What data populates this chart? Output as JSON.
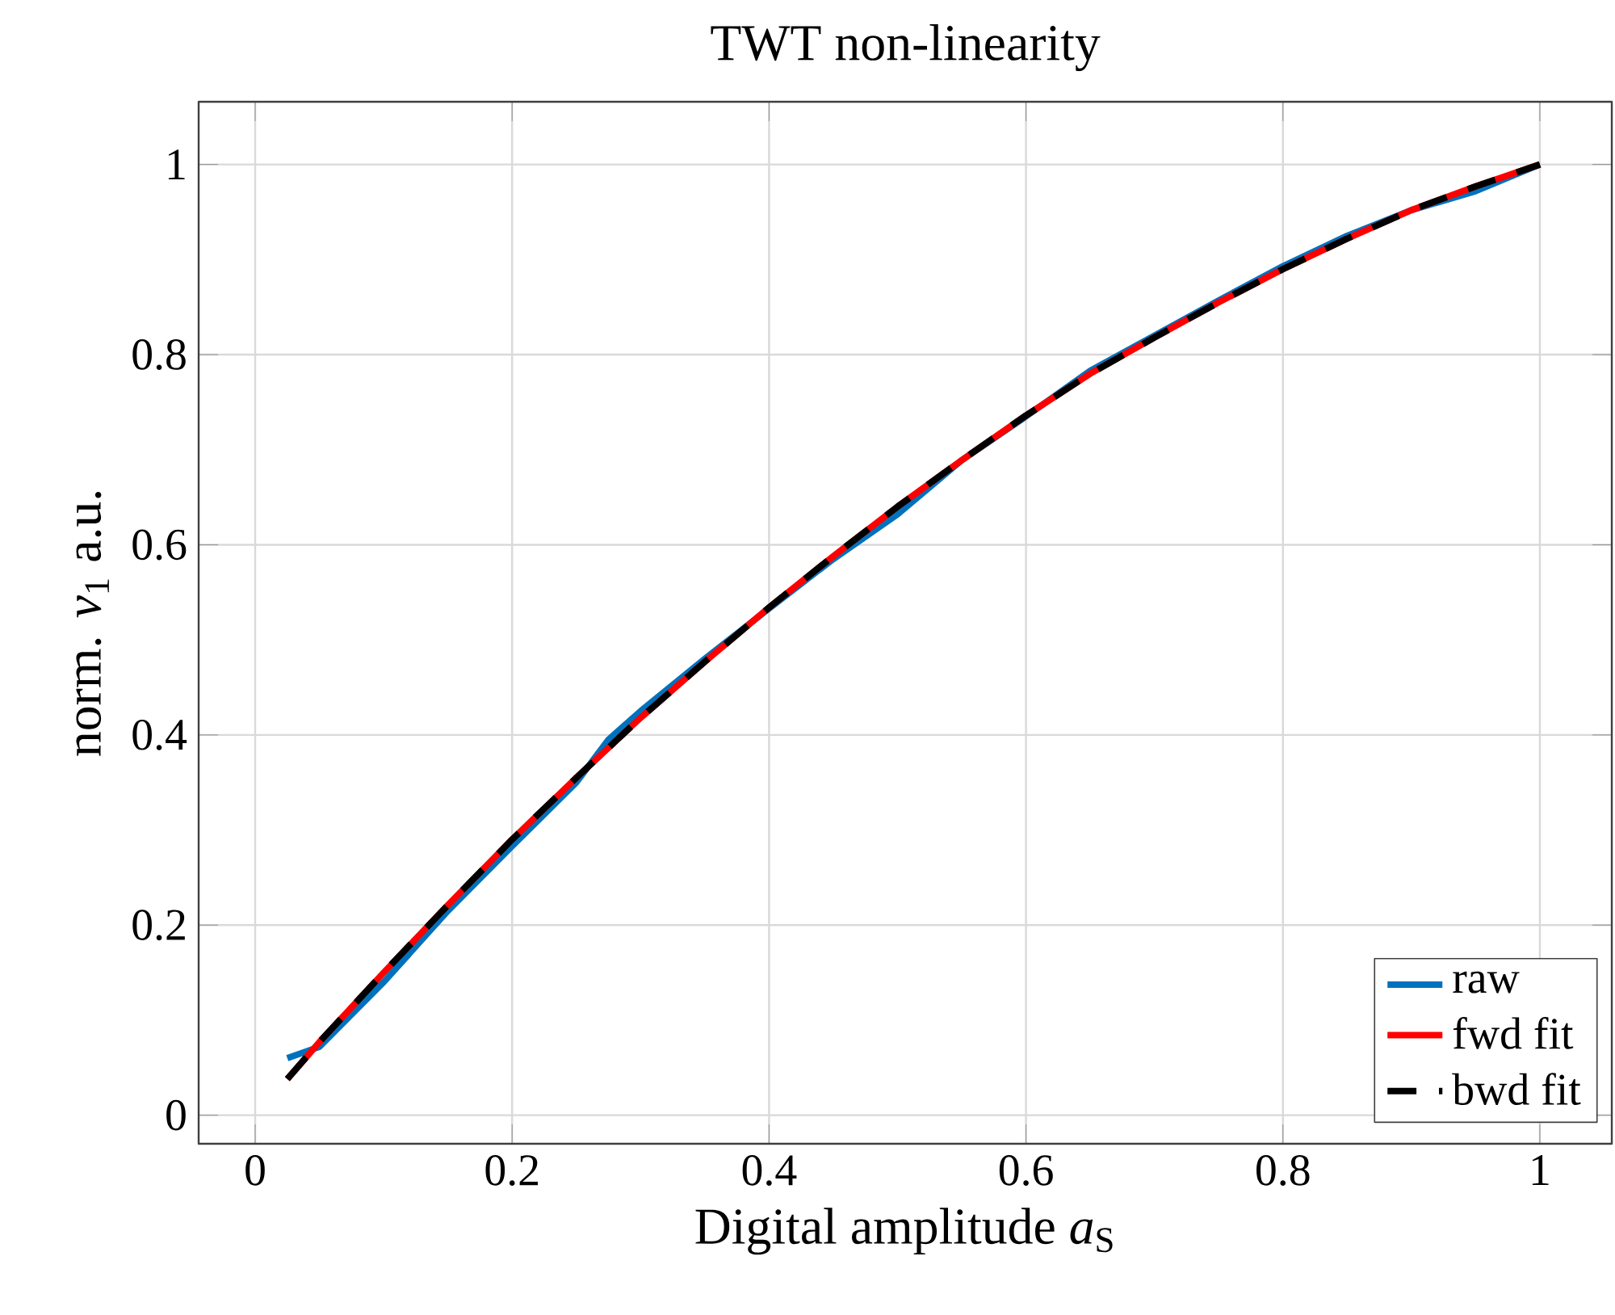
{
  "chart_data": {
    "type": "line",
    "title": "TWT non-linearity",
    "xlabel": "Digital amplitude *a*$_{S}$",
    "ylabel": "norm. *ν*$_{1}$ a.u.",
    "xlim": [
      -0.044,
      1.056
    ],
    "ylim": [
      -0.03,
      1.066
    ],
    "xticks": [
      0,
      0.2,
      0.4,
      0.6,
      0.8,
      1
    ],
    "yticks": [
      0,
      0.2,
      0.4,
      0.6,
      0.8,
      1
    ],
    "grid": true,
    "legend": "bottom right",
    "series": [
      {
        "name": "raw",
        "color": "#0072bd",
        "line_style": "solid",
        "x": [
          0.025,
          0.05,
          0.1,
          0.15,
          0.2,
          0.25,
          0.275,
          0.3,
          0.35,
          0.4,
          0.45,
          0.5,
          0.55,
          0.6,
          0.65,
          0.7,
          0.75,
          0.8,
          0.85,
          0.9,
          0.95,
          1
        ],
        "values": [
          0.06,
          0.072,
          0.14,
          0.215,
          0.283,
          0.35,
          0.395,
          0.425,
          0.48,
          0.533,
          0.585,
          0.632,
          0.689,
          0.735,
          0.783,
          0.82,
          0.857,
          0.893,
          0.925,
          0.952,
          0.972,
          1
        ]
      },
      {
        "name": "fwd fit",
        "color": "#ff0000",
        "line_style": "solid",
        "x": [
          0.025,
          0.05,
          0.1,
          0.15,
          0.2,
          0.25,
          0.3,
          0.35,
          0.4,
          0.45,
          0.5,
          0.55,
          0.6,
          0.65,
          0.7,
          0.75,
          0.8,
          0.85,
          0.9,
          0.95,
          1
        ],
        "values": [
          0.038,
          0.077,
          0.15,
          0.221,
          0.29,
          0.355,
          0.418,
          0.477,
          0.534,
          0.588,
          0.64,
          0.689,
          0.736,
          0.78,
          0.818,
          0.855,
          0.89,
          0.922,
          0.952,
          0.977,
          1
        ]
      },
      {
        "name": "bwd fit",
        "color": "#000000",
        "line_style": "dashed",
        "x": [
          0.025,
          0.05,
          0.1,
          0.15,
          0.2,
          0.25,
          0.3,
          0.35,
          0.4,
          0.45,
          0.5,
          0.55,
          0.6,
          0.65,
          0.7,
          0.75,
          0.8,
          0.85,
          0.9,
          0.95,
          1
        ],
        "values": [
          0.038,
          0.077,
          0.15,
          0.221,
          0.29,
          0.355,
          0.418,
          0.477,
          0.534,
          0.588,
          0.64,
          0.689,
          0.736,
          0.78,
          0.818,
          0.855,
          0.89,
          0.922,
          0.952,
          0.977,
          1
        ]
      }
    ]
  }
}
